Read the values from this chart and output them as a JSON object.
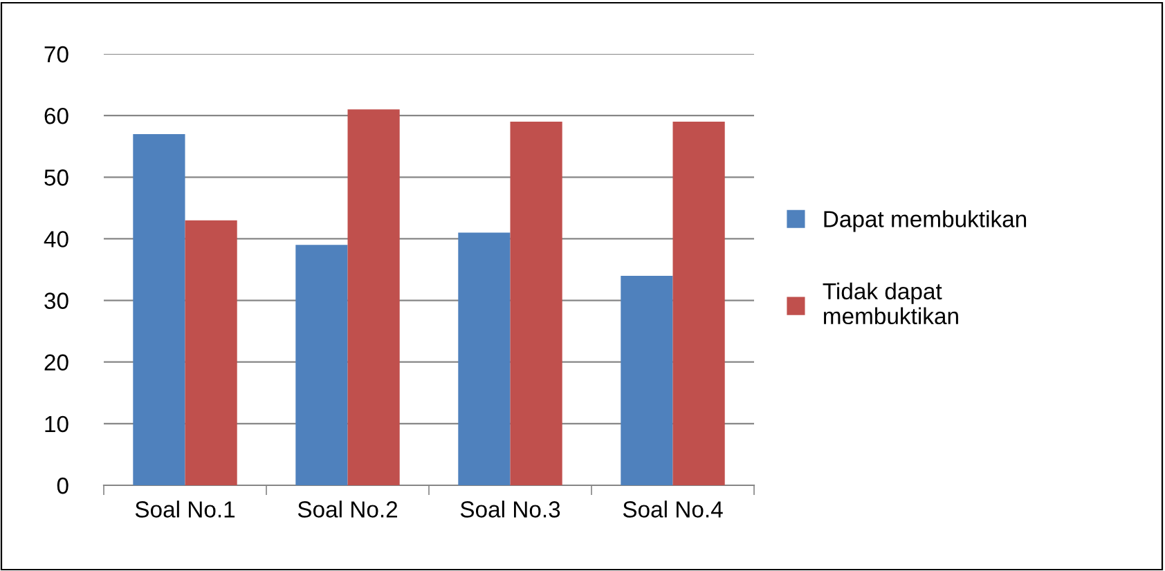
{
  "chart_data": {
    "type": "bar",
    "categories": [
      "Soal No.1",
      "Soal No.2",
      "Soal No.3",
      "Soal No.4"
    ],
    "series": [
      {
        "name": "Dapat membuktikan",
        "color": "#4f81bd",
        "values": [
          57,
          39,
          41,
          34
        ]
      },
      {
        "name": "Tidak dapat\nmembuktikan",
        "color": "#c0504d",
        "values": [
          43,
          61,
          59,
          59
        ]
      }
    ],
    "ylim": [
      0,
      70
    ],
    "yticks": [
      0,
      10,
      20,
      30,
      40,
      50,
      60,
      70
    ],
    "grid": "y",
    "legend": "right"
  }
}
